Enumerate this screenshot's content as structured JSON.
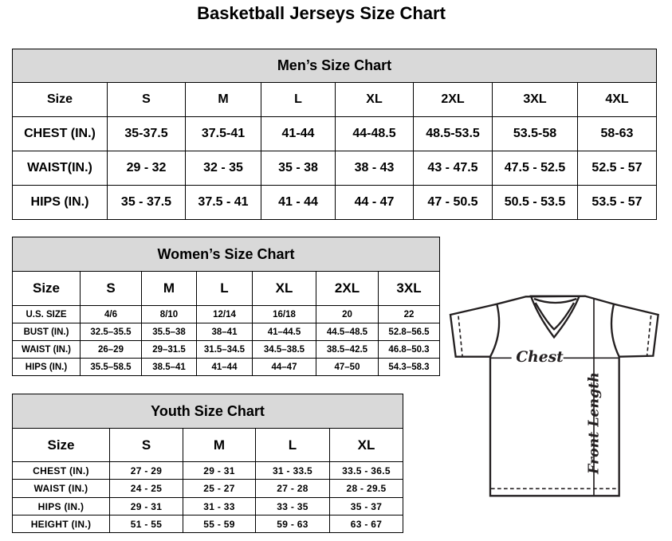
{
  "title": "Basketball Jerseys Size Chart",
  "men": {
    "heading": "Men’s Size Chart",
    "rows": [
      [
        "Size",
        "S",
        "M",
        "L",
        "XL",
        "2XL",
        "3XL",
        "4XL"
      ],
      [
        "CHEST (IN.)",
        "35-37.5",
        "37.5-41",
        "41-44",
        "44-48.5",
        "48.5-53.5",
        "53.5-58",
        "58-63"
      ],
      [
        "WAIST(IN.)",
        "29 - 32",
        "32 - 35",
        "35 - 38",
        "38 - 43",
        "43 - 47.5",
        "47.5 - 52.5",
        "52.5 - 57"
      ],
      [
        "HIPS (IN.)",
        "35 - 37.5",
        "37.5 - 41",
        "41 - 44",
        "44 - 47",
        "47 - 50.5",
        "50.5 - 53.5",
        "53.5 - 57"
      ]
    ]
  },
  "women": {
    "heading": "Women’s Size Chart",
    "rows": [
      [
        "Size",
        "S",
        "M",
        "L",
        "XL",
        "2XL",
        "3XL"
      ],
      [
        "U.S. SIZE",
        "4/6",
        "8/10",
        "12/14",
        "16/18",
        "20",
        "22"
      ],
      [
        "BUST (IN.)",
        "32.5–35.5",
        "35.5–38",
        "38–41",
        "41–44.5",
        "44.5–48.5",
        "52.8–56.5"
      ],
      [
        "WAIST (IN.)",
        "26–29",
        "29–31.5",
        "31.5–34.5",
        "34.5–38.5",
        "38.5–42.5",
        "46.8–50.3"
      ],
      [
        "HIPS (IN.)",
        "35.5–58.5",
        "38.5–41",
        "41–44",
        "44–47",
        "47–50",
        "54.3–58.3"
      ]
    ]
  },
  "youth": {
    "heading": "Youth Size Chart",
    "rows": [
      [
        "Size",
        "S",
        "M",
        "L",
        "XL"
      ],
      [
        "CHEST (IN.)",
        "27 - 29",
        "29 - 31",
        "31 - 33.5",
        "33.5 - 36.5"
      ],
      [
        "WAIST (IN.)",
        "24 - 25",
        "25 - 27",
        "27 - 28",
        "28 - 29.5"
      ],
      [
        "HIPS (IN.)",
        "29 - 31",
        "31 - 33",
        "33 - 35",
        "35 - 37"
      ],
      [
        "HEIGHT (IN.)",
        "51 - 55",
        "55 - 59",
        "59 - 63",
        "63 - 67"
      ]
    ]
  },
  "diagram": {
    "chest_label": "Chest",
    "length_label": "Front Length"
  }
}
